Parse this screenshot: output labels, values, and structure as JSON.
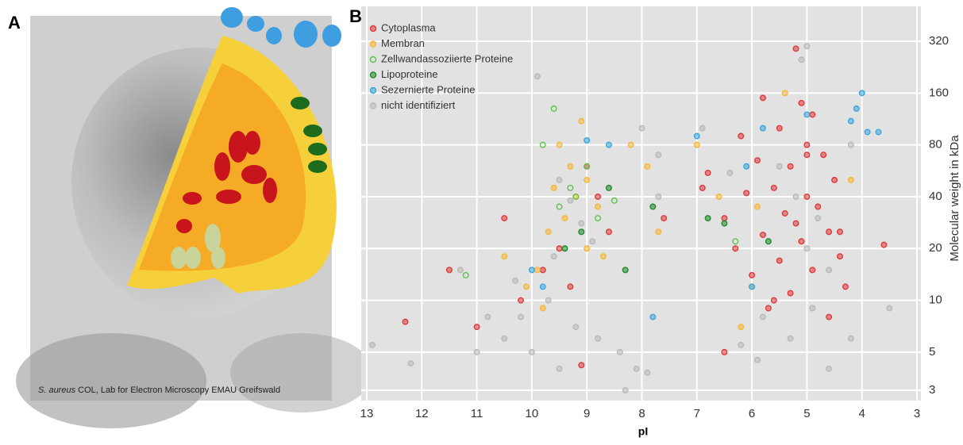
{
  "panel_a": {
    "label": "A",
    "caption_italic": "S. aureus",
    "caption": "COL, Lab for Electron Microscopy EMAU Greifswald"
  },
  "chart_data": {
    "type": "scatter",
    "panel_label": "B",
    "x_label": "pI",
    "y_label": "Molecular weight in kDa",
    "xlim": [
      13,
      3
    ],
    "xticks": [
      13,
      12,
      11,
      10,
      9,
      8,
      7,
      6,
      5,
      4,
      3
    ],
    "ylim": [
      3,
      500
    ],
    "yticks": [
      3,
      5,
      10,
      20,
      40,
      80,
      160,
      320
    ],
    "log_y": true,
    "grid": true,
    "legend": "upper left",
    "series": [
      {
        "name": "Cytoplasma",
        "color": "#e03a3a",
        "x": [
          5.2,
          5.8,
          5.1,
          4.9,
          5.5,
          6.2,
          5.0,
          4.7,
          5.9,
          5.3,
          6.8,
          4.5,
          5.6,
          6.1,
          5.0,
          4.8,
          5.4,
          6.5,
          5.2,
          4.6,
          5.8,
          5.1,
          6.3,
          4.4,
          5.5,
          4.9,
          6.0,
          4.3,
          5.3,
          5.7,
          4.6,
          6.5,
          3.6,
          12.3,
          11.5,
          10.5,
          9.8,
          9.3,
          8.6,
          8.8,
          9.5,
          10.2,
          9.0,
          11.0,
          6.9,
          7.6,
          5.0,
          4.4,
          5.6,
          9.1
        ],
        "values": [
          290,
          150,
          140,
          120,
          100,
          90,
          80,
          70,
          65,
          60,
          55,
          50,
          45,
          42,
          40,
          35,
          32,
          30,
          28,
          25,
          24,
          22,
          20,
          18,
          17,
          15,
          14,
          12,
          11,
          9,
          8,
          5,
          21,
          7.5,
          15,
          30,
          15,
          12,
          25,
          40,
          20,
          10,
          60,
          7,
          45,
          30,
          70,
          25,
          10,
          4.2
        ]
      },
      {
        "name": "Membran",
        "color": "#f5b83a",
        "x": [
          9.1,
          9.5,
          9.3,
          9.0,
          9.6,
          9.2,
          8.8,
          9.4,
          9.7,
          9.0,
          8.7,
          9.9,
          10.1,
          7.9,
          7.7,
          6.6,
          5.9,
          5.4,
          4.2,
          6.0,
          8.2,
          9.8,
          6.2,
          10.5,
          7.0
        ],
        "values": [
          110,
          80,
          60,
          50,
          45,
          40,
          35,
          30,
          25,
          20,
          18,
          15,
          12,
          60,
          25,
          40,
          35,
          160,
          50,
          12,
          80,
          9,
          7,
          18,
          80
        ]
      },
      {
        "name": "Zellwandassoziierte Proteine",
        "color": "#5cc34a",
        "hollow": true,
        "x": [
          9.6,
          9.0,
          9.2,
          8.8,
          9.5,
          11.2,
          6.3,
          9.3,
          9.8,
          8.5
        ],
        "values": [
          130,
          60,
          40,
          30,
          35,
          14,
          22,
          45,
          80,
          38
        ]
      },
      {
        "name": "Lipoproteine",
        "color": "#1f8a2a",
        "x": [
          8.6,
          9.1,
          8.3,
          9.4,
          6.5,
          7.8,
          6.8,
          5.7
        ],
        "values": [
          45,
          25,
          15,
          20,
          28,
          35,
          30,
          22
        ]
      },
      {
        "name": "Sezernierte Proteine",
        "color": "#3aa6dd",
        "x": [
          4.0,
          4.1,
          4.2,
          3.9,
          3.7,
          7.0,
          5.0,
          5.8,
          8.6,
          9.0,
          6.0,
          7.8,
          9.8,
          10.0,
          6.1
        ],
        "values": [
          160,
          130,
          110,
          95,
          95,
          90,
          120,
          100,
          80,
          85,
          12,
          8,
          12,
          15,
          60
        ]
      },
      {
        "name": "nicht identifiziert",
        "color": "#b9b9b9",
        "x": [
          5.0,
          9.9,
          8.0,
          10.8,
          12.9,
          12.2,
          11.0,
          10.5,
          10.0,
          9.5,
          9.2,
          8.8,
          8.4,
          8.1,
          7.9,
          8.3,
          9.7,
          10.2,
          9.5,
          9.3,
          9.1,
          8.9,
          9.6,
          5.5,
          5.2,
          4.8,
          5.0,
          4.6,
          5.8,
          6.2,
          5.9,
          4.6,
          4.2,
          3.5,
          4.9,
          5.3,
          7.7,
          7.7,
          6.9,
          6.4,
          11.3,
          10.3,
          4.2,
          5.1
        ],
        "values": [
          300,
          200,
          100,
          8,
          5.5,
          4.3,
          5,
          6,
          5,
          4,
          7,
          6,
          5,
          4,
          3.8,
          3,
          10,
          8,
          50,
          38,
          28,
          22,
          18,
          60,
          40,
          30,
          20,
          15,
          8,
          5.5,
          4.5,
          4,
          6,
          9,
          9,
          6,
          70,
          40,
          100,
          55,
          15,
          13,
          80,
          250
        ]
      }
    ]
  }
}
